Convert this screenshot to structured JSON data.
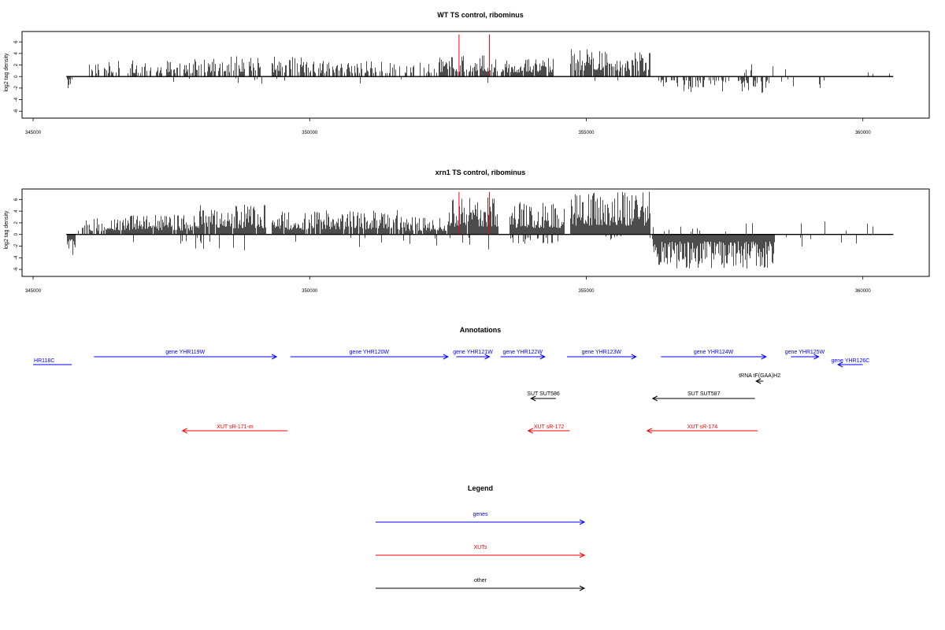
{
  "chart_data": [
    {
      "type": "bar",
      "title": "WT TS control, ribominus",
      "xlabel": "",
      "ylabel": "log2 tag density",
      "xlim": [
        344800,
        361200
      ],
      "ylim": [
        -7.2,
        7.8
      ],
      "x_ticks": [
        "345000",
        "350000",
        "355000",
        "360000"
      ],
      "y_ticks": [
        "6",
        "4",
        "2",
        "0",
        "-2",
        "-4",
        "-6"
      ],
      "genomic_range": [
        345600,
        360550
      ],
      "highlight_positions": [
        352700,
        353250
      ],
      "highlight_value": 7.3,
      "positive_segments": [
        {
          "start": 346000,
          "end": 346400,
          "density": 0.4,
          "max": 2.5
        },
        {
          "start": 346400,
          "end": 347900,
          "density": 0.55,
          "max": 2.8
        },
        {
          "start": 347900,
          "end": 349100,
          "density": 0.6,
          "max": 3.5
        },
        {
          "start": 349300,
          "end": 350000,
          "density": 0.65,
          "max": 3.5
        },
        {
          "start": 350000,
          "end": 351300,
          "density": 0.6,
          "max": 3.0
        },
        {
          "start": 351300,
          "end": 352300,
          "density": 0.45,
          "max": 2.6
        },
        {
          "start": 352300,
          "end": 353400,
          "density": 0.7,
          "max": 3.8
        },
        {
          "start": 353450,
          "end": 354400,
          "density": 0.85,
          "max": 3.6
        },
        {
          "start": 354700,
          "end": 355350,
          "density": 0.9,
          "max": 5.2
        },
        {
          "start": 355350,
          "end": 356150,
          "density": 0.85,
          "max": 4.2
        },
        {
          "start": 356200,
          "end": 360500,
          "density": 0.03,
          "max": 2.2
        }
      ],
      "negative_segments": [
        {
          "start": 345600,
          "end": 345700,
          "density": 0.8,
          "max": 2.4
        },
        {
          "start": 346000,
          "end": 356200,
          "density": 0.02,
          "max": 1.5
        },
        {
          "start": 356300,
          "end": 358300,
          "density": 0.35,
          "max": 3.0
        },
        {
          "start": 358300,
          "end": 359400,
          "density": 0.12,
          "max": 2.3
        },
        {
          "start": 359400,
          "end": 360500,
          "density": 0.01,
          "max": 1.0
        }
      ]
    },
    {
      "type": "bar",
      "title": "xrn1 TS control, ribominus",
      "xlabel": "",
      "ylabel": "log2 tag density",
      "xlim": [
        344800,
        361200
      ],
      "ylim": [
        -7.2,
        7.8
      ],
      "x_ticks": [
        "345000",
        "350000",
        "355000",
        "360000"
      ],
      "y_ticks": [
        "6",
        "4",
        "2",
        "0",
        "-2",
        "-4",
        "-6"
      ],
      "genomic_range": [
        345600,
        360550
      ],
      "highlight_positions": [
        352700,
        353250
      ],
      "highlight_value": 7.3,
      "positive_segments": [
        {
          "start": 345800,
          "end": 346300,
          "density": 0.55,
          "max": 2.8
        },
        {
          "start": 346300,
          "end": 348000,
          "density": 0.95,
          "max": 3.4
        },
        {
          "start": 348000,
          "end": 349200,
          "density": 0.95,
          "max": 5.2
        },
        {
          "start": 349300,
          "end": 350200,
          "density": 0.9,
          "max": 4.0
        },
        {
          "start": 350200,
          "end": 351600,
          "density": 0.9,
          "max": 4.2
        },
        {
          "start": 351600,
          "end": 352500,
          "density": 0.85,
          "max": 3.0
        },
        {
          "start": 352500,
          "end": 353400,
          "density": 0.95,
          "max": 6.5
        },
        {
          "start": 353600,
          "end": 354600,
          "density": 0.98,
          "max": 5.6
        },
        {
          "start": 354700,
          "end": 356150,
          "density": 1.0,
          "max": 7.4
        },
        {
          "start": 356200,
          "end": 358100,
          "density": 0.1,
          "max": 2.0
        },
        {
          "start": 358100,
          "end": 360500,
          "density": 0.04,
          "max": 2.5
        }
      ],
      "negative_segments": [
        {
          "start": 345600,
          "end": 345750,
          "density": 1.0,
          "max": 3.8
        },
        {
          "start": 345750,
          "end": 353500,
          "density": 0.04,
          "max": 2.8
        },
        {
          "start": 353500,
          "end": 354500,
          "density": 0.3,
          "max": 2.6
        },
        {
          "start": 354500,
          "end": 356200,
          "density": 0.05,
          "max": 1.5
        },
        {
          "start": 356200,
          "end": 358400,
          "density": 1.0,
          "max": 6.0
        },
        {
          "start": 358400,
          "end": 360500,
          "density": 0.05,
          "max": 2.2
        }
      ]
    }
  ],
  "annotations": {
    "title": "Annotations",
    "xlim": [
      344800,
      361200
    ],
    "features": [
      {
        "label": "HR118C",
        "class": "gene",
        "strand": "-",
        "start": 345000,
        "end": 345700,
        "row": "gene-low",
        "color": "#0000ff",
        "arrow": false
      },
      {
        "label": "gene YHR119W",
        "class": "gene",
        "strand": "+",
        "start": 346100,
        "end": 349400,
        "row": "gene-high",
        "color": "#0000ff",
        "arrow": true
      },
      {
        "label": "gene YHR120W",
        "class": "gene",
        "strand": "+",
        "start": 349650,
        "end": 352500,
        "row": "gene-high",
        "color": "#0000ff",
        "arrow": true
      },
      {
        "label": "gene YHR121W",
        "class": "gene",
        "strand": "+",
        "start": 352650,
        "end": 353250,
        "row": "gene-high",
        "color": "#0000ff",
        "arrow": true
      },
      {
        "label": "gene YHR122W",
        "class": "gene",
        "strand": "+",
        "start": 353450,
        "end": 354250,
        "row": "gene-high",
        "color": "#0000ff",
        "arrow": true
      },
      {
        "label": "gene YHR123W",
        "class": "gene",
        "strand": "+",
        "start": 354650,
        "end": 355900,
        "row": "gene-high",
        "color": "#0000ff",
        "arrow": true
      },
      {
        "label": "gene YHR124W",
        "class": "gene",
        "strand": "+",
        "start": 356350,
        "end": 358250,
        "row": "gene-high",
        "color": "#0000ff",
        "arrow": true
      },
      {
        "label": "gene YHR125W",
        "class": "gene",
        "strand": "+",
        "start": 358700,
        "end": 359200,
        "row": "gene-high",
        "color": "#0000ff",
        "arrow": true
      },
      {
        "label": "gene YHR126C",
        "class": "gene",
        "strand": "-",
        "start": 359550,
        "end": 360000,
        "row": "gene-low",
        "color": "#0000ff",
        "arrow": true
      },
      {
        "label": "tRNA tF(GAA)H2",
        "class": "other",
        "strand": "-",
        "start": 358070,
        "end": 358200,
        "row": "trna",
        "color": "#000000",
        "arrow": true
      },
      {
        "label": "SUT SUT586",
        "class": "other",
        "strand": "-",
        "start": 354000,
        "end": 354450,
        "row": "sut",
        "color": "#000000",
        "arrow": true
      },
      {
        "label": "SUT SUT587",
        "class": "other",
        "strand": "-",
        "start": 356200,
        "end": 358050,
        "row": "sut",
        "color": "#000000",
        "arrow": true
      },
      {
        "label": "XUT sR-171-m",
        "class": "xut",
        "strand": "-",
        "start": 347700,
        "end": 349600,
        "row": "xut",
        "color": "#ff0000",
        "arrow": true
      },
      {
        "label": "XUT sR-172",
        "class": "xut",
        "strand": "-",
        "start": 353950,
        "end": 354700,
        "row": "xut",
        "color": "#ff0000",
        "arrow": true
      },
      {
        "label": "XUT sR-174",
        "class": "xut",
        "strand": "-",
        "start": 356100,
        "end": 358100,
        "row": "xut",
        "color": "#ff0000",
        "arrow": true
      }
    ]
  },
  "legend": {
    "title": "Legend",
    "items": [
      {
        "label": "genes",
        "color": "#0000ff"
      },
      {
        "label": "XUTs",
        "color": "#ff0000"
      },
      {
        "label": "other",
        "color": "#000000"
      }
    ]
  }
}
